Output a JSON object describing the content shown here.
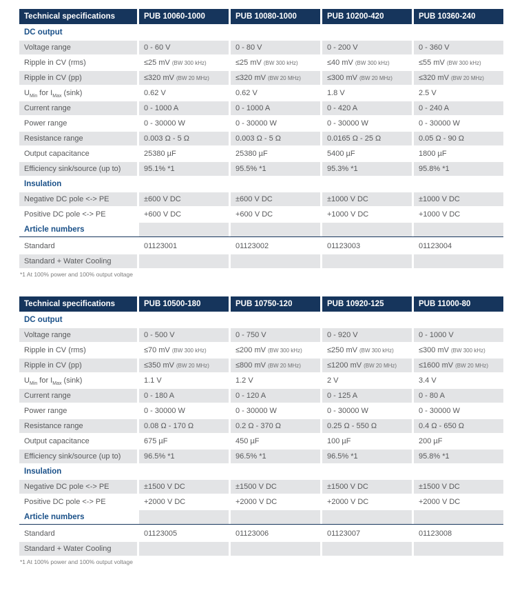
{
  "colors": {
    "header_bg": "#16355C",
    "section_text": "#1B5189",
    "stripe": "#E3E4E6",
    "body_text": "#58595B"
  },
  "tables": [
    {
      "columns": [
        "Technical specifications",
        "PUB 10060-1000",
        "PUB 10080-1000",
        "PUB 10200-420",
        "PUB 10360-240"
      ],
      "footnote": "*1 At 100% power and 100% output voltage",
      "rows": [
        {
          "type": "section",
          "label": "DC output",
          "shade": false,
          "values": [
            "",
            "",
            "",
            ""
          ]
        },
        {
          "type": "data",
          "label": "Voltage range",
          "shade": true,
          "values": [
            "0 - 60 V",
            "0 - 80 V",
            "0 - 200 V",
            "0 - 360 V"
          ]
        },
        {
          "type": "data",
          "label": "Ripple in CV (rms)",
          "shade": false,
          "values": [
            {
              "v": "≤25 mV",
              "note": "(BW 300 kHz)"
            },
            {
              "v": "≤25 mV",
              "note": "(BW 300 kHz)"
            },
            {
              "v": "≤40 mV",
              "note": "(BW 300 kHz)"
            },
            {
              "v": "≤55 mV",
              "note": "(BW 300 kHz)"
            }
          ]
        },
        {
          "type": "data",
          "label": "Ripple in CV (pp)",
          "shade": true,
          "values": [
            {
              "v": "≤320 mV",
              "note": "(BW 20 MHz)"
            },
            {
              "v": "≤320 mV",
              "note": "(BW 20 MHz)"
            },
            {
              "v": "≤300 mV",
              "note": "(BW 20 MHz)"
            },
            {
              "v": "≤320 mV",
              "note": "(BW 20 MHz)"
            }
          ]
        },
        {
          "type": "data",
          "label": "U_Min for I_Max (sink)",
          "shade": false,
          "label_parts": [
            {
              "text": "U"
            },
            {
              "text": "Min",
              "sub": true
            },
            {
              "text": " for I"
            },
            {
              "text": "Max",
              "sub": true
            },
            {
              "text": " (sink)"
            }
          ],
          "values": [
            "0.62 V",
            "0.62 V",
            "1.8 V",
            "2.5 V"
          ]
        },
        {
          "type": "data",
          "label": "Current range",
          "shade": true,
          "values": [
            "0 - 1000 A",
            "0 - 1000 A",
            "0 - 420 A",
            "0 - 240 A"
          ]
        },
        {
          "type": "data",
          "label": "Power range",
          "shade": false,
          "values": [
            "0 - 30000 W",
            "0 - 30000 W",
            "0 - 30000 W",
            "0 - 30000 W"
          ]
        },
        {
          "type": "data",
          "label": "Resistance range",
          "shade": true,
          "values": [
            "0.003 Ω - 5 Ω",
            "0.003 Ω - 5 Ω",
            "0.0165 Ω - 25 Ω",
            "0.05 Ω - 90 Ω"
          ]
        },
        {
          "type": "data",
          "label": "Output capacitance",
          "shade": false,
          "values": [
            "25380 µF",
            "25380 µF",
            "5400 µF",
            "1800 µF"
          ]
        },
        {
          "type": "data",
          "label": "Efficiency sink/source (up to)",
          "shade": true,
          "values": [
            "95.1% *1",
            "95.5% *1",
            "95.3% *1",
            "95.8% *1"
          ]
        },
        {
          "type": "section",
          "label": "Insulation",
          "shade": false,
          "values": [
            "",
            "",
            "",
            ""
          ]
        },
        {
          "type": "data",
          "label": "Negative DC pole <-> PE",
          "shade": true,
          "values": [
            "±600 V DC",
            "±600 V DC",
            "±1000 V DC",
            "±1000 V DC"
          ]
        },
        {
          "type": "data",
          "label": "Positive DC pole <-> PE",
          "shade": false,
          "values": [
            "+600 V DC",
            "+600 V DC",
            "+1000 V DC",
            "+1000 V DC"
          ]
        },
        {
          "type": "section",
          "label": "Article numbers",
          "shade": true,
          "divider": true,
          "values": [
            "",
            "",
            "",
            ""
          ]
        },
        {
          "type": "data",
          "label": "Standard",
          "shade": false,
          "values": [
            "01123001",
            "01123002",
            "01123003",
            "01123004"
          ]
        },
        {
          "type": "data",
          "label": "Standard + Water Cooling",
          "shade": true,
          "values": [
            "",
            "",
            "",
            ""
          ]
        }
      ]
    },
    {
      "columns": [
        "Technical specifications",
        "PUB 10500-180",
        "PUB 10750-120",
        "PUB 10920-125",
        "PUB 11000-80"
      ],
      "footnote": "*1 At 100% power and 100% output voltage",
      "rows": [
        {
          "type": "section",
          "label": "DC output",
          "shade": false,
          "values": [
            "",
            "",
            "",
            ""
          ]
        },
        {
          "type": "data",
          "label": "Voltage range",
          "shade": true,
          "values": [
            "0 - 500 V",
            "0 - 750 V",
            "0 - 920 V",
            "0 - 1000 V"
          ]
        },
        {
          "type": "data",
          "label": "Ripple in CV (rms)",
          "shade": false,
          "values": [
            {
              "v": "≤70 mV",
              "note": "(BW 300 kHz)"
            },
            {
              "v": "≤200 mV",
              "note": "(BW 300 kHz)"
            },
            {
              "v": "≤250 mV",
              "note": "(BW 300 kHz)"
            },
            {
              "v": "≤300 mV",
              "note": "(BW 300 kHz)"
            }
          ]
        },
        {
          "type": "data",
          "label": "Ripple in CV (pp)",
          "shade": true,
          "values": [
            {
              "v": "≤350 mV",
              "note": "(BW 20 MHz)"
            },
            {
              "v": "≤800 mV",
              "note": "(BW 20 MHz)"
            },
            {
              "v": "≤1200 mV",
              "note": "(BW 20 MHz)"
            },
            {
              "v": "≤1600 mV",
              "note": "(BW 20 MHz)"
            }
          ]
        },
        {
          "type": "data",
          "label": "U_Min for I_Max (sink)",
          "shade": false,
          "label_parts": [
            {
              "text": "U"
            },
            {
              "text": "Min",
              "sub": true
            },
            {
              "text": " for I"
            },
            {
              "text": "Max",
              "sub": true
            },
            {
              "text": " (sink)"
            }
          ],
          "values": [
            "1.1 V",
            "1.2 V",
            "2 V",
            "3.4 V"
          ]
        },
        {
          "type": "data",
          "label": "Current range",
          "shade": true,
          "values": [
            "0 - 180 A",
            "0 - 120 A",
            "0 - 125 A",
            "0 - 80 A"
          ]
        },
        {
          "type": "data",
          "label": "Power range",
          "shade": false,
          "values": [
            "0 - 30000 W",
            "0 - 30000 W",
            "0 - 30000 W",
            "0 - 30000 W"
          ]
        },
        {
          "type": "data",
          "label": "Resistance range",
          "shade": true,
          "values": [
            "0.08 Ω - 170 Ω",
            "0.2 Ω - 370 Ω",
            "0.25 Ω - 550 Ω",
            "0.4 Ω - 650 Ω"
          ]
        },
        {
          "type": "data",
          "label": "Output capacitance",
          "shade": false,
          "values": [
            "675 µF",
            "450 µF",
            "100 µF",
            "200 µF"
          ]
        },
        {
          "type": "data",
          "label": "Efficiency sink/source (up to)",
          "shade": true,
          "values": [
            "96.5% *1",
            "96.5% *1",
            "96.5% *1",
            "95.8% *1"
          ]
        },
        {
          "type": "section",
          "label": "Insulation",
          "shade": false,
          "values": [
            "",
            "",
            "",
            ""
          ]
        },
        {
          "type": "data",
          "label": "Negative DC pole <-> PE",
          "shade": true,
          "values": [
            "±1500 V DC",
            "±1500 V DC",
            "±1500 V DC",
            "±1500 V DC"
          ]
        },
        {
          "type": "data",
          "label": "Positive DC pole <-> PE",
          "shade": false,
          "values": [
            "+2000 V DC",
            "+2000 V DC",
            "+2000 V DC",
            "+2000 V DC"
          ]
        },
        {
          "type": "section",
          "label": "Article numbers",
          "shade": true,
          "divider": true,
          "values": [
            "",
            "",
            "",
            ""
          ]
        },
        {
          "type": "data",
          "label": "Standard",
          "shade": false,
          "values": [
            "01123005",
            "01123006",
            "01123007",
            "01123008"
          ]
        },
        {
          "type": "data",
          "label": "Standard + Water Cooling",
          "shade": true,
          "values": [
            "",
            "",
            "",
            ""
          ]
        }
      ]
    }
  ]
}
